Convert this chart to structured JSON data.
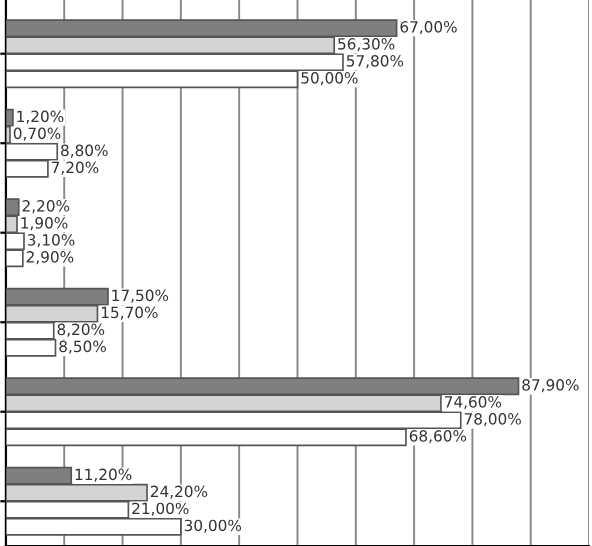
{
  "chart_data": {
    "type": "bar",
    "orientation": "horizontal",
    "categories": [
      null,
      null,
      null,
      null,
      null,
      null
    ],
    "series": [
      {
        "color": "#7f7f7f",
        "values": [
          67.0,
          1.2,
          2.2,
          17.5,
          87.9,
          11.2
        ],
        "value_labels": [
          "67,00%",
          "1,20%",
          "2,20%",
          "17,50%",
          "87,90%",
          "11,20%"
        ]
      },
      {
        "color": "#d4d4d4",
        "values": [
          56.3,
          0.7,
          1.9,
          15.7,
          74.6,
          24.2
        ],
        "value_labels": [
          "56,30%",
          "0,70%",
          "1,90%",
          "15,70%",
          "74,60%",
          "24,20%"
        ]
      },
      {
        "color": "#ffffff",
        "values": [
          57.8,
          8.8,
          3.1,
          8.2,
          78.0,
          21.0
        ],
        "value_labels": [
          "57,80%",
          "8,80%",
          "3,10%",
          "8,20%",
          "78,00%",
          "21,00%"
        ]
      },
      {
        "color": "#ffffff",
        "values": [
          50.0,
          7.2,
          2.9,
          8.5,
          68.6,
          30.0
        ],
        "value_labels": [
          "50,00%",
          "7,20%",
          "2,90%",
          "8,50%",
          "68,60%",
          "30,00%"
        ]
      }
    ],
    "xlim": [
      0,
      100
    ],
    "xticks": [
      {
        "value": 0,
        "label": null
      },
      {
        "value": 10,
        "label": null
      },
      {
        "value": 20,
        "label": null
      },
      {
        "value": 30,
        "label": null
      },
      {
        "value": 40,
        "label": null
      },
      {
        "value": 50,
        "label": null
      },
      {
        "value": 60,
        "label": null
      },
      {
        "value": 70,
        "label": null
      },
      {
        "value": 80,
        "label": null
      },
      {
        "value": 90,
        "label": null
      },
      {
        "value": 100,
        "label": null
      }
    ],
    "grid": "x"
  }
}
